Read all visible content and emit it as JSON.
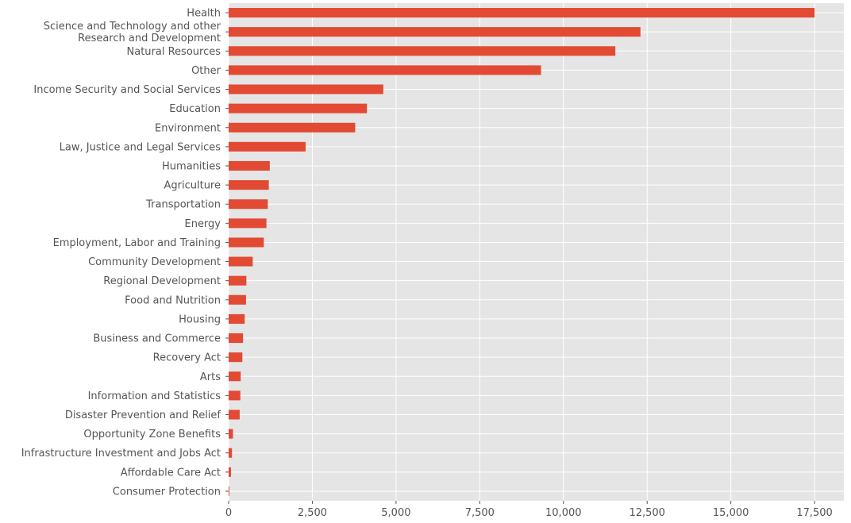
{
  "chart_data": {
    "type": "bar",
    "orientation": "horizontal",
    "categories": [
      "Health",
      "Science and Technology and other\nResearch and Development",
      "Natural Resources",
      "Other",
      "Income Security and Social Services",
      "Education",
      "Environment",
      "Law, Justice and Legal Services",
      "Humanities",
      "Agriculture",
      "Transportation",
      "Energy",
      "Employment, Labor and Training",
      "Community Development",
      "Regional Development",
      "Food and Nutrition",
      "Housing",
      "Business and Commerce",
      "Recovery Act",
      "Arts",
      "Information and Statistics",
      "Disaster Prevention and Relief",
      "Opportunity Zone Benefits",
      "Infrastructure Investment and Jobs Act",
      "Affordable Care Act",
      "Consumer Protection"
    ],
    "values": [
      17500,
      12300,
      11550,
      9330,
      4620,
      4130,
      3780,
      2300,
      1230,
      1200,
      1170,
      1130,
      1050,
      720,
      530,
      520,
      480,
      430,
      410,
      360,
      350,
      330,
      130,
      100,
      70,
      20
    ],
    "xticks": [
      "0",
      "2,500",
      "5,000",
      "7,500",
      "10,000",
      "12,500",
      "15,000",
      "17,500"
    ],
    "xtick_values": [
      0,
      2500,
      5000,
      7500,
      10000,
      12500,
      15000,
      17500
    ],
    "xlim": [
      0,
      18375
    ],
    "title": "",
    "xlabel": "",
    "ylabel": "",
    "grid": true,
    "colors": {
      "bar": "#e24a33",
      "background": "#e5e5e5",
      "grid": "#ffffff",
      "text": "#555555"
    }
  }
}
